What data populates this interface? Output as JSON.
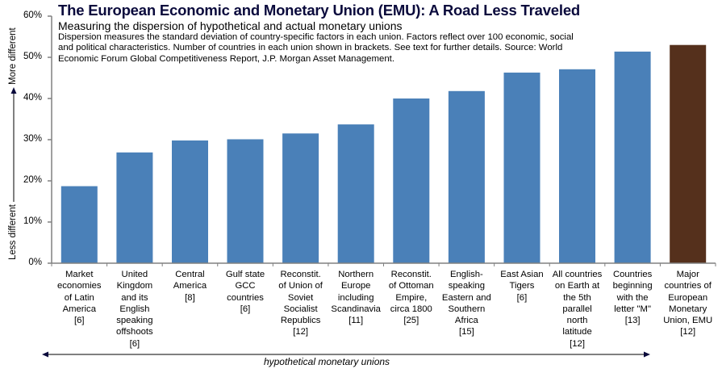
{
  "chart_data": {
    "type": "bar",
    "title": "The European Economic and Monetary Union (EMU): A Road Less Traveled",
    "subtitle": "Measuring the dispersion of hypothetical and actual monetary unions",
    "description": "Dispersion measures the standard deviation of country-specific factors in each union.  Factors reflect over 100 economic, social and political characteristics.  Number of countries in each union shown in brackets.  See text for further details.  Source:  World Economic Forum Global Competitiveness Report, J.P. Morgan Asset Management.",
    "categories": [
      "Market\neconomies\nof Latin\nAmerica\n[6]",
      "United\nKingdom\nand its\nEnglish\nspeaking\noffshoots\n[6]",
      "Central\nAmerica\n[8]",
      "Gulf state\nGCC\ncountries\n[6]",
      "Reconstit.\nof Union of\nSoviet\nSocialist\nRepublics\n[12]",
      "Northern\nEurope\nincluding\nScandinavia\n[11]",
      "Reconstit.\nof Ottoman\nEmpire,\ncirca 1800\n[25]",
      "English-\nspeaking\nEastern and\nSouthern\nAfrica\n[15]",
      "East Asian\nTigers\n[6]",
      "All countries\non Earth at\nthe 5th\nparallel\nnorth\nlatitude\n[12]",
      "Countries\nbeginning\nwith the\nletter \"M\"\n[13]",
      "Major\ncountries of\nEuropean\nMonetary\nUnion, EMU\n[12]"
    ],
    "values": [
      18.7,
      26.9,
      29.8,
      30.1,
      31.5,
      33.7,
      40.0,
      41.8,
      46.3,
      47.1,
      51.4,
      53.0
    ],
    "bar_colors": [
      "#4a80b8",
      "#4a80b8",
      "#4a80b8",
      "#4a80b8",
      "#4a80b8",
      "#4a80b8",
      "#4a80b8",
      "#4a80b8",
      "#4a80b8",
      "#4a80b8",
      "#4a80b8",
      "#55301c"
    ],
    "ylim": [
      0,
      60
    ],
    "yticks": [
      "0%",
      "10%",
      "20%",
      "30%",
      "40%",
      "50%",
      "60%"
    ],
    "ytick_values": [
      0,
      10,
      20,
      30,
      40,
      50,
      60
    ],
    "ylabel_low": "Less different",
    "ylabel_high": "More different",
    "xlabel": "hypothetical monetary unions",
    "grid": false,
    "legend": "none"
  }
}
